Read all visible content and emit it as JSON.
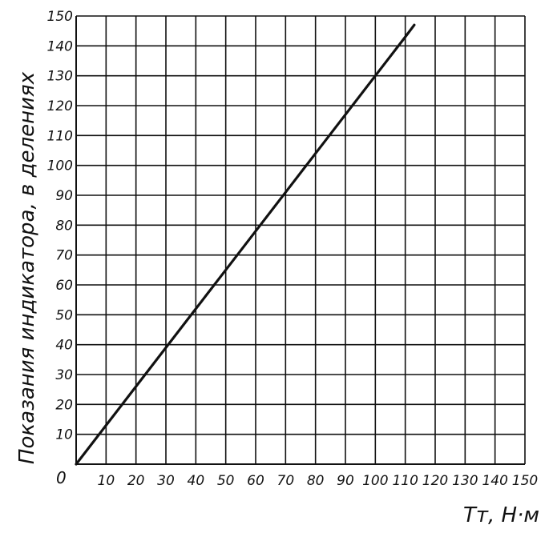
{
  "chart_data": {
    "type": "line",
    "title": "",
    "xlabel": "Tт, Н·м",
    "ylabel": "Показания индикатора, в делениях",
    "xlim": [
      0,
      150
    ],
    "ylim": [
      0,
      150
    ],
    "grid": true,
    "x_ticks": [
      10,
      20,
      30,
      40,
      50,
      60,
      70,
      80,
      90,
      100,
      110,
      120,
      130,
      140,
      150
    ],
    "y_ticks": [
      10,
      20,
      30,
      40,
      50,
      60,
      70,
      80,
      90,
      100,
      110,
      120,
      130,
      140,
      150
    ],
    "origin_label": "0",
    "series": [
      {
        "x": [
          0,
          10,
          20,
          30,
          40,
          50,
          60,
          70,
          80,
          90,
          100,
          110,
          113
        ],
        "y": [
          0,
          13,
          26,
          39,
          52,
          65,
          78,
          91,
          104,
          117,
          130,
          143,
          147
        ]
      }
    ]
  }
}
